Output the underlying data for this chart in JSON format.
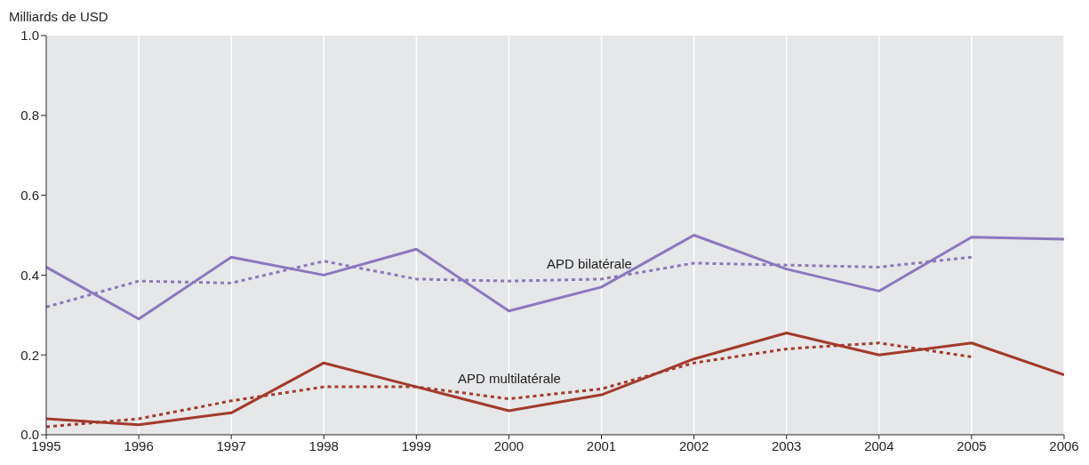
{
  "chart_data": {
    "type": "line",
    "ylabel": "Milliards de USD",
    "x": [
      1995,
      1996,
      1997,
      1998,
      1999,
      2000,
      2001,
      2002,
      2003,
      2004,
      2005,
      2006
    ],
    "series": [
      {
        "color": "#8c78bd",
        "line_style": "solid",
        "values": [
          0.42,
          0.29,
          0.445,
          0.4,
          0.465,
          0.31,
          0.37,
          0.5,
          0.415,
          0.36,
          0.495,
          0.49
        ]
      },
      {
        "color": "#8c78bd",
        "line_style": "dotted",
        "values": [
          0.32,
          0.385,
          0.38,
          0.435,
          0.39,
          0.385,
          0.39,
          0.43,
          0.425,
          0.42,
          0.445,
          null
        ]
      },
      {
        "color": "#a33a2e",
        "line_style": "solid",
        "values": [
          0.04,
          0.025,
          0.055,
          0.18,
          0.12,
          0.06,
          0.1,
          0.19,
          0.255,
          0.2,
          0.23,
          0.15
        ]
      },
      {
        "color": "#a33a2e",
        "line_style": "dotted",
        "values": [
          0.02,
          0.04,
          0.085,
          0.12,
          0.12,
          0.09,
          0.115,
          0.18,
          0.215,
          0.23,
          0.195,
          null
        ]
      }
    ],
    "annotations": [
      "APD bilatérale",
      "APD multilatérale"
    ],
    "xlim": [
      1995,
      2006
    ],
    "xticks": [
      1995,
      1996,
      1997,
      1998,
      1999,
      2000,
      2001,
      2002,
      2003,
      2004,
      2005,
      2006
    ],
    "ylim": [
      0,
      1
    ],
    "yticks": [
      {
        "value": 0,
        "label": "0.0"
      },
      {
        "value": 0.2,
        "label": "0.2"
      },
      {
        "value": 0.4,
        "label": "0.4"
      },
      {
        "value": 0.6,
        "label": "0.6"
      },
      {
        "value": 0.8,
        "label": "0.8"
      },
      {
        "value": 1,
        "label": "1.0"
      }
    ],
    "grid": "x",
    "marker": "none"
  }
}
